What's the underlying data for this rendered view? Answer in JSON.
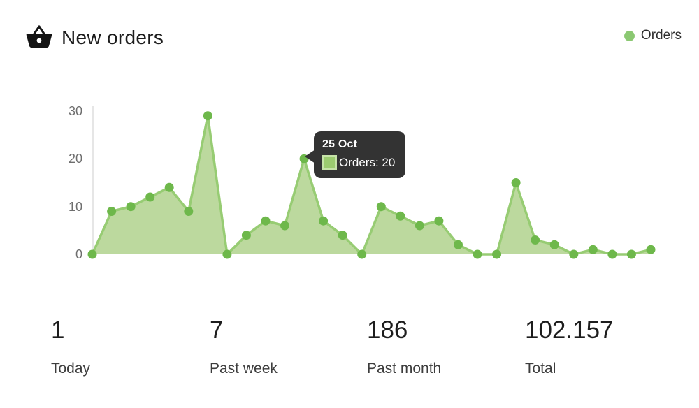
{
  "header": {
    "title": "New orders",
    "icon": "basket-icon"
  },
  "legend": {
    "label": "Orders",
    "dot_color": "#8bc872"
  },
  "tooltip": {
    "date": "25 Oct",
    "label": "Orders: 20",
    "value": 20,
    "bg": "#333333",
    "swatch_fill": "#9bcb6f",
    "swatch_border": "#c6e3a8"
  },
  "chart_data": {
    "type": "area",
    "title": "New orders",
    "series_name": "Orders",
    "values": [
      0,
      9,
      10,
      12,
      14,
      9,
      29,
      0,
      4,
      7,
      6,
      20,
      7,
      4,
      0,
      10,
      8,
      6,
      7,
      2,
      0,
      0,
      15,
      3,
      2,
      0,
      1,
      0,
      0,
      1
    ],
    "highlight": {
      "index": 11,
      "date": "25 Oct",
      "value": 20
    },
    "y_ticks": [
      30,
      20,
      10,
      0
    ],
    "y_tick_labels": [
      "30",
      "20",
      "10",
      "0"
    ],
    "ylim": [
      0,
      30
    ],
    "xlabel": "",
    "ylabel": "",
    "grid": false,
    "legend_position": "top-right",
    "colors": {
      "dot": "#6eb84b",
      "line": "#97cc73",
      "fill": "#bcd99e",
      "axis": "#dedede"
    }
  },
  "stats": {
    "items": [
      {
        "value": "1",
        "label": "Today"
      },
      {
        "value": "7",
        "label": "Past week"
      },
      {
        "value": "186",
        "label": "Past month"
      },
      {
        "value": "102.157",
        "label": "Total"
      }
    ]
  }
}
